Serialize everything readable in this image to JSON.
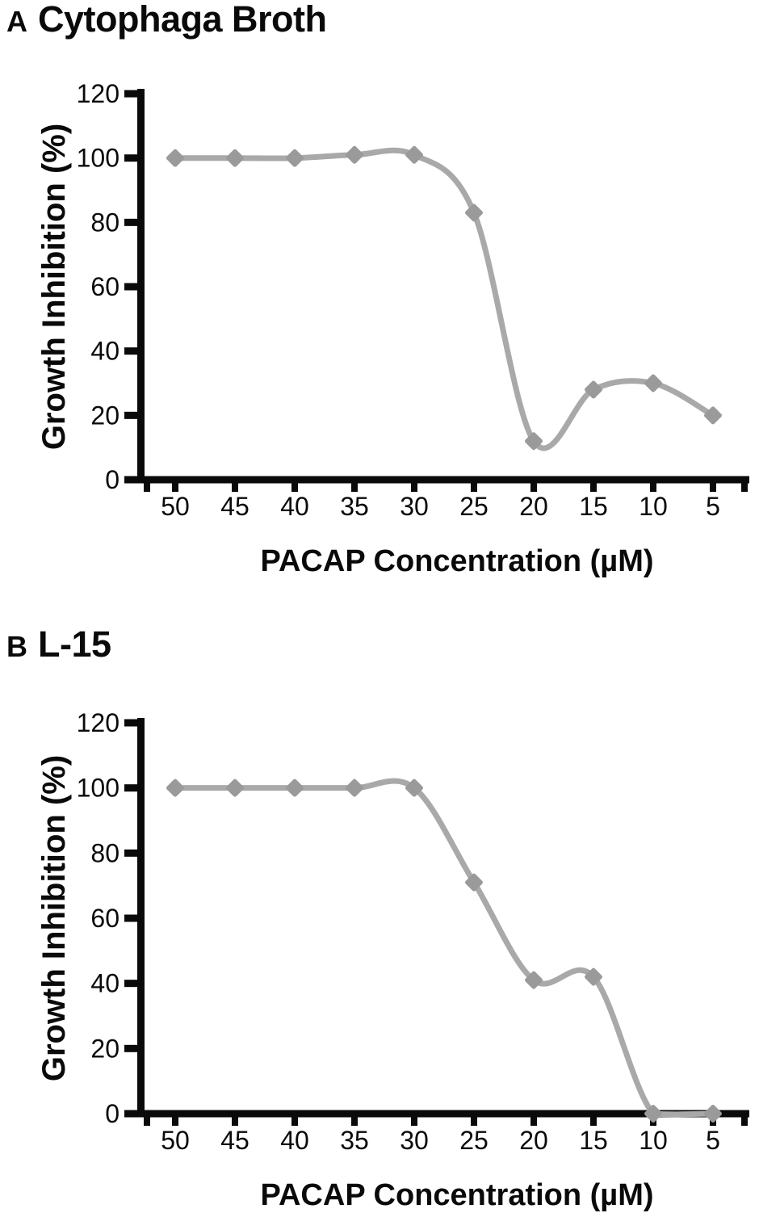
{
  "figure": {
    "panels": [
      {
        "panel_label": "A",
        "title": "Cytophaga Broth"
      },
      {
        "panel_label": "B",
        "title": "L-15"
      }
    ]
  },
  "colors": {
    "background": "#ffffff",
    "line": "#a9a9a9",
    "marker": "#9a9a9a",
    "axis": "#0a0a0a",
    "text": "#0a0a0a"
  },
  "chart_data": [
    {
      "type": "line",
      "panel": "A",
      "title": "Cytophaga Broth",
      "x_categories": [
        50,
        45,
        40,
        35,
        30,
        25,
        20,
        15,
        10,
        5
      ],
      "values": [
        100,
        100,
        100,
        101,
        101,
        83,
        12,
        28,
        30,
        20
      ],
      "xlabel": "PACAP Concentration (µM)",
      "ylabel": "Growth Inhibition (%)",
      "ylim": [
        0,
        120
      ],
      "yticks": [
        0,
        20,
        40,
        60,
        80,
        100,
        120
      ],
      "x_axis_direction": "descending-left-to-right",
      "grid": false,
      "legend": "none",
      "marker": "diamond",
      "smooth": true
    },
    {
      "type": "line",
      "panel": "B",
      "title": "L-15",
      "x_categories": [
        50,
        45,
        40,
        35,
        30,
        25,
        20,
        15,
        10,
        5
      ],
      "values": [
        100,
        100,
        100,
        100,
        100,
        71,
        41,
        42,
        0,
        0
      ],
      "xlabel": "PACAP Concentration (µM)",
      "ylabel": "Growth Inhibition (%)",
      "ylim": [
        0,
        120
      ],
      "yticks": [
        0,
        20,
        40,
        60,
        80,
        100,
        120
      ],
      "x_axis_direction": "descending-left-to-right",
      "grid": false,
      "legend": "none",
      "marker": "diamond",
      "smooth": true
    }
  ]
}
